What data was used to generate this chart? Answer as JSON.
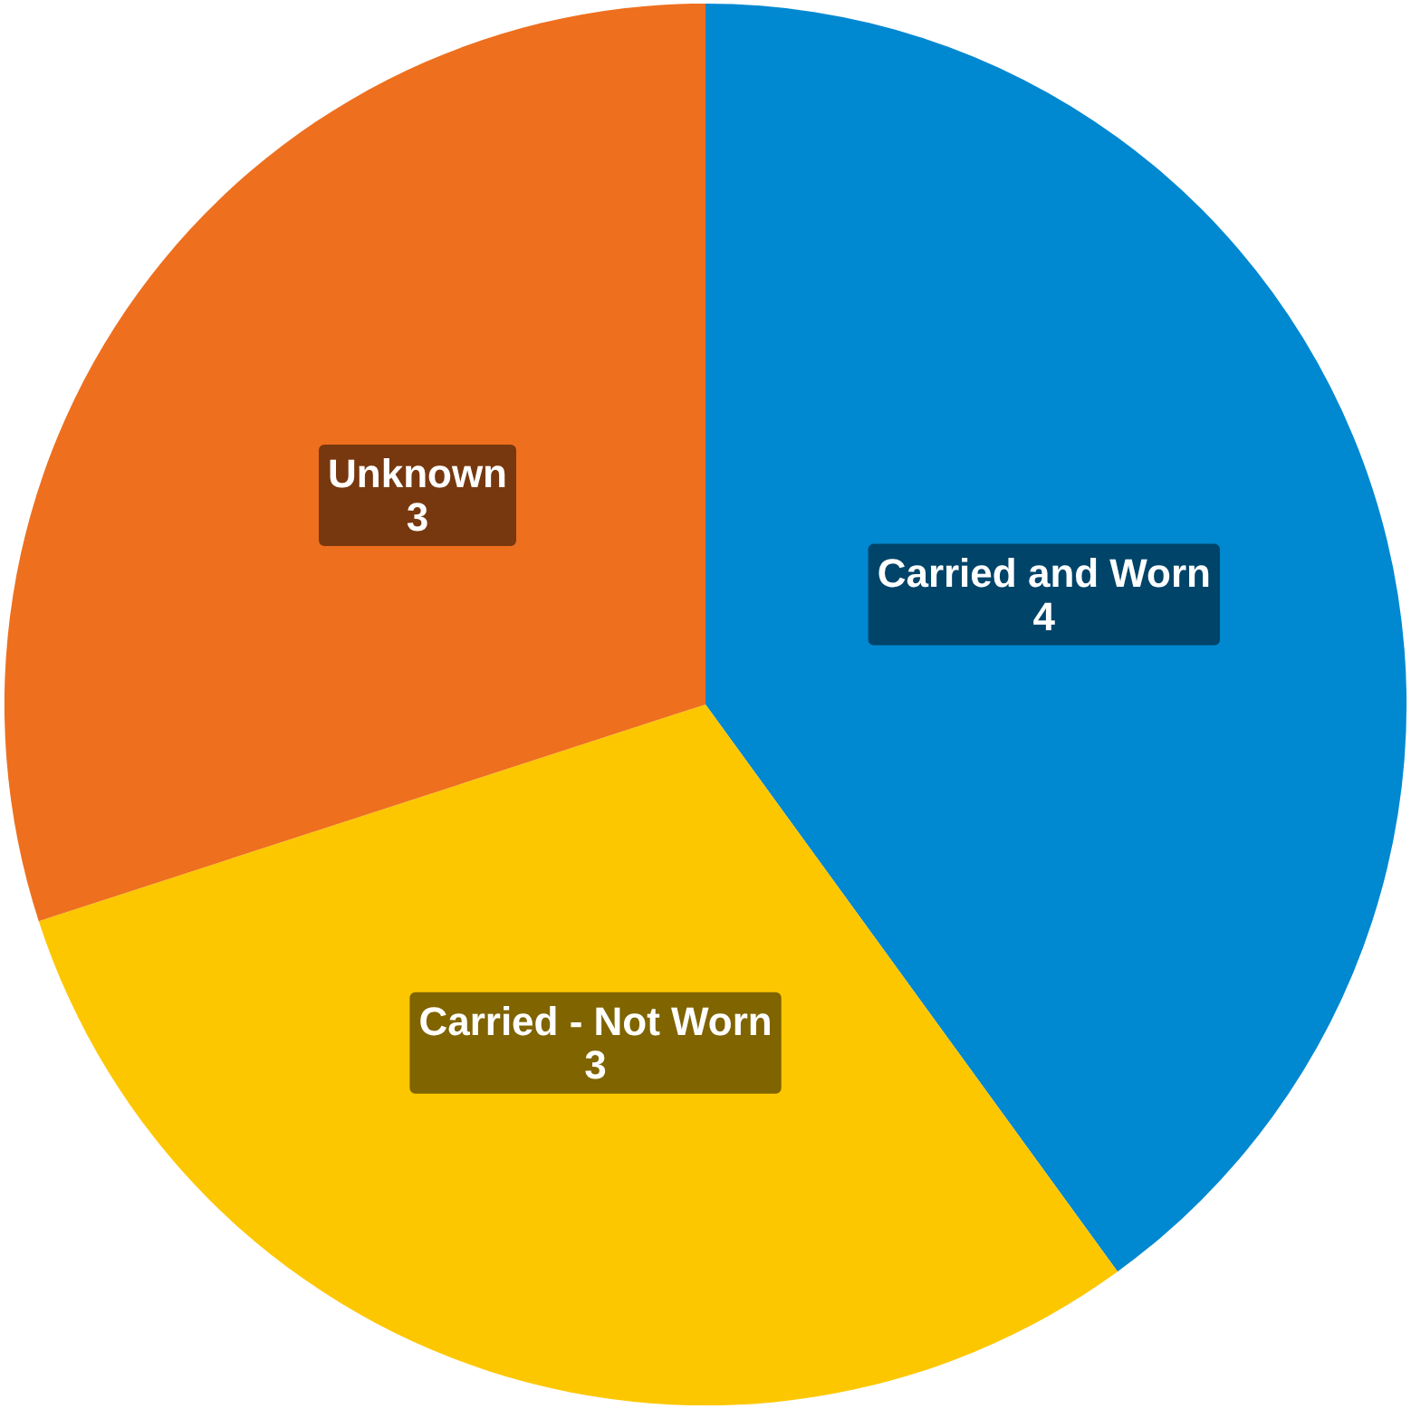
{
  "chart_data": {
    "type": "pie",
    "categories": [
      "Carried and Worn",
      "Carried - Not Worn",
      "Unknown"
    ],
    "values": [
      4,
      3,
      3
    ],
    "colors": [
      "#0088d1",
      "#fdc700",
      "#ee6f1e"
    ],
    "data_labels": true
  }
}
